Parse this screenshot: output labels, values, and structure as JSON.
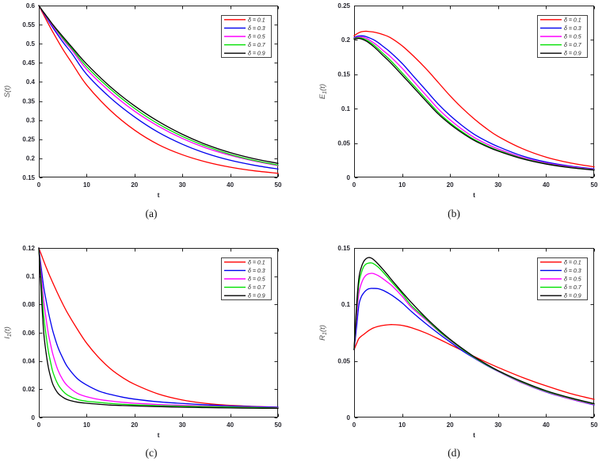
{
  "figure": {
    "background": "#ffffff",
    "axis_color": "#222222",
    "tick_label_color": "#26262e",
    "ylabel_color": "#555555",
    "legend_text_color": "#222222"
  },
  "chart_data": [
    {
      "type": "line",
      "caption": "(a)",
      "xlabel": "t",
      "ylabel_base": "S",
      "ylabel_sub": "",
      "ylabel_rest": "(t)",
      "xlim": [
        0,
        50
      ],
      "ylim": [
        0.15,
        0.6
      ],
      "xticks": [
        0,
        10,
        20,
        30,
        40,
        50
      ],
      "xtick_labels": [
        "0",
        "10",
        "20",
        "30",
        "40",
        "50"
      ],
      "yticks": [
        0.15,
        0.2,
        0.25,
        0.3,
        0.35,
        0.4,
        0.45,
        0.5,
        0.55,
        0.6
      ],
      "ytick_labels": [
        "0.15",
        "0.2",
        "0.25",
        "0.3",
        "0.35",
        "0.4",
        "0.45",
        "0.5",
        "0.55",
        "0.6"
      ],
      "legend_position": "northeast",
      "grid": false,
      "x": [
        0,
        1,
        2,
        3,
        5,
        7,
        10,
        15,
        20,
        25,
        30,
        35,
        40,
        45,
        50
      ],
      "series": [
        {
          "name": "δ = 0.1",
          "color": "#ff0000",
          "values": [
            0.6,
            0.576,
            0.552,
            0.529,
            0.486,
            0.448,
            0.392,
            0.325,
            0.274,
            0.236,
            0.2095,
            0.1905,
            0.177,
            0.1675,
            0.161
          ]
        },
        {
          "name": "δ = 0.3",
          "color": "#0000ee",
          "values": [
            0.6,
            0.58,
            0.56,
            0.541,
            0.505,
            0.473,
            0.42,
            0.358,
            0.3085,
            0.268,
            0.237,
            0.213,
            0.195,
            0.182,
            0.172
          ]
        },
        {
          "name": "δ = 0.5",
          "color": "#ff00ff",
          "values": [
            0.6,
            0.581,
            0.563,
            0.545,
            0.512,
            0.482,
            0.433,
            0.373,
            0.3235,
            0.284,
            0.252,
            0.227,
            0.208,
            0.193,
            0.181
          ]
        },
        {
          "name": "δ = 0.7",
          "color": "#00e000",
          "values": [
            0.6,
            0.582,
            0.565,
            0.548,
            0.515,
            0.486,
            0.44,
            0.381,
            0.331,
            0.29,
            0.2575,
            0.2315,
            0.2105,
            0.1945,
            0.1825
          ]
        },
        {
          "name": "δ = 0.9",
          "color": "#000000",
          "values": [
            0.6,
            0.5825,
            0.566,
            0.549,
            0.519,
            0.49,
            0.447,
            0.387,
            0.3375,
            0.2965,
            0.263,
            0.236,
            0.215,
            0.199,
            0.187
          ]
        }
      ]
    },
    {
      "type": "line",
      "caption": "(b)",
      "xlabel": "t",
      "ylabel_base": "E",
      "ylabel_sub": "1",
      "ylabel_rest": "(t)",
      "xlim": [
        0,
        50
      ],
      "ylim": [
        0,
        0.25
      ],
      "xticks": [
        0,
        10,
        20,
        30,
        40,
        50
      ],
      "xtick_labels": [
        "0",
        "10",
        "20",
        "30",
        "40",
        "50"
      ],
      "yticks": [
        0,
        0.05,
        0.1,
        0.15,
        0.2,
        0.25
      ],
      "ytick_labels": [
        "0",
        "0.05",
        "0.1",
        "0.15",
        "0.2",
        "0.25"
      ],
      "legend_position": "northeast",
      "grid": false,
      "x": [
        0,
        0.5,
        1,
        1.5,
        2,
        2.5,
        3,
        4,
        5,
        6,
        7.5,
        10,
        12.5,
        15,
        17.5,
        20,
        22.5,
        25,
        27.5,
        30,
        35,
        40,
        45,
        50
      ],
      "series": [
        {
          "name": "δ = 0.1",
          "color": "#ff0000",
          "values": [
            0.206,
            0.2085,
            0.2105,
            0.2118,
            0.2124,
            0.2126,
            0.2123,
            0.2115,
            0.21,
            0.2078,
            0.2036,
            0.1915,
            0.1757,
            0.158,
            0.1384,
            0.1187,
            0.101,
            0.0853,
            0.0715,
            0.0597,
            0.0421,
            0.0295,
            0.0212,
            0.0155
          ]
        },
        {
          "name": "δ = 0.3",
          "color": "#0000ee",
          "values": [
            0.2033,
            0.205,
            0.2058,
            0.206,
            0.2057,
            0.2048,
            0.2035,
            0.2005,
            0.1962,
            0.1908,
            0.1825,
            0.1659,
            0.1462,
            0.1266,
            0.1069,
            0.09,
            0.0755,
            0.0629,
            0.0531,
            0.0448,
            0.0314,
            0.0224,
            0.0165,
            0.0125
          ]
        },
        {
          "name": "δ = 0.5",
          "color": "#ff00ff",
          "values": [
            0.2025,
            0.2038,
            0.2044,
            0.2043,
            0.2036,
            0.2024,
            0.2007,
            0.1962,
            0.191,
            0.1848,
            0.1762,
            0.1589,
            0.139,
            0.1195,
            0.1,
            0.0838,
            0.07,
            0.0583,
            0.0492,
            0.0415,
            0.0293,
            0.021,
            0.0155,
            0.0118
          ]
        },
        {
          "name": "δ = 0.7",
          "color": "#00e000",
          "values": [
            0.2018,
            0.2029,
            0.2032,
            0.2028,
            0.2018,
            0.2002,
            0.1982,
            0.1932,
            0.1872,
            0.1805,
            0.1708,
            0.1522,
            0.1331,
            0.1139,
            0.095,
            0.0795,
            0.0665,
            0.0553,
            0.0467,
            0.0394,
            0.0279,
            0.02,
            0.0147,
            0.0112
          ]
        },
        {
          "name": "δ = 0.9",
          "color": "#000000",
          "values": [
            0.2012,
            0.2021,
            0.2022,
            0.2015,
            0.2002,
            0.1984,
            0.1962,
            0.1908,
            0.1844,
            0.1775,
            0.1676,
            0.149,
            0.13,
            0.111,
            0.0925,
            0.0775,
            0.0648,
            0.0539,
            0.0455,
            0.0384,
            0.0272,
            0.0195,
            0.0143,
            0.0108
          ]
        }
      ]
    },
    {
      "type": "line",
      "caption": "(c)",
      "xlabel": "t",
      "ylabel_base": "I",
      "ylabel_sub": "1",
      "ylabel_rest": "(t)",
      "xlim": [
        0,
        50
      ],
      "ylim": [
        0,
        0.12
      ],
      "xticks": [
        0,
        10,
        20,
        30,
        40,
        50
      ],
      "xtick_labels": [
        "0",
        "10",
        "20",
        "30",
        "40",
        "50"
      ],
      "yticks": [
        0,
        0.02,
        0.04,
        0.06,
        0.08,
        0.1,
        0.12
      ],
      "ytick_labels": [
        "0",
        "0.02",
        "0.04",
        "0.06",
        "0.08",
        "0.1",
        "0.12"
      ],
      "legend_position": "northeast",
      "grid": false,
      "x": [
        0,
        0.5,
        1,
        1.5,
        2,
        2.5,
        3,
        4,
        5,
        6,
        8,
        10,
        12.5,
        15,
        17.5,
        20,
        25,
        30,
        35,
        40,
        45,
        50
      ],
      "series": [
        {
          "name": "δ = 0.1",
          "color": "#ff0000",
          "values": [
            0.12,
            0.1155,
            0.111,
            0.1066,
            0.1025,
            0.0986,
            0.0948,
            0.0874,
            0.0804,
            0.074,
            0.0628,
            0.0526,
            0.0425,
            0.0344,
            0.0283,
            0.0235,
            0.0166,
            0.0124,
            0.00995,
            0.0086,
            0.00785,
            0.0073
          ]
        },
        {
          "name": "δ = 0.3",
          "color": "#0000ee",
          "values": [
            0.12,
            0.1062,
            0.0928,
            0.0833,
            0.0746,
            0.0671,
            0.0603,
            0.0497,
            0.0421,
            0.0358,
            0.0277,
            0.023,
            0.0188,
            0.0163,
            0.0144,
            0.013,
            0.0111,
            0.00995,
            0.009,
            0.0082,
            0.0077,
            0.0073
          ]
        },
        {
          "name": "δ = 0.5",
          "color": "#ff00ff",
          "values": [
            0.12,
            0.1012,
            0.0832,
            0.0705,
            0.0593,
            0.0511,
            0.044,
            0.0335,
            0.0268,
            0.0224,
            0.0172,
            0.0147,
            0.0128,
            0.0117,
            0.0108,
            0.0101,
            0.0092,
            0.0086,
            0.0081,
            0.00765,
            0.0073,
            0.0069
          ]
        },
        {
          "name": "δ = 0.7",
          "color": "#00e000",
          "values": [
            0.12,
            0.0955,
            0.0727,
            0.0585,
            0.0469,
            0.0385,
            0.0316,
            0.0235,
            0.0188,
            0.0159,
            0.0128,
            0.0115,
            0.0107,
            0.00995,
            0.0094,
            0.009,
            0.0084,
            0.008,
            0.0077,
            0.0074,
            0.00705,
            0.0067
          ]
        },
        {
          "name": "δ = 0.9",
          "color": "#000000",
          "values": [
            0.12,
            0.089,
            0.0612,
            0.0462,
            0.0354,
            0.0283,
            0.023,
            0.0172,
            0.0144,
            0.0126,
            0.0109,
            0.0101,
            0.0094,
            0.0088,
            0.0085,
            0.0082,
            0.0077,
            0.0073,
            0.007,
            0.0068,
            0.0066,
            0.0065
          ]
        }
      ]
    },
    {
      "type": "line",
      "caption": "(d)",
      "xlabel": "t",
      "ylabel_base": "R",
      "ylabel_sub": "1",
      "ylabel_rest": "(t)",
      "xlim": [
        0,
        50
      ],
      "ylim": [
        0,
        0.15
      ],
      "xticks": [
        0,
        10,
        20,
        30,
        40,
        50
      ],
      "xtick_labels": [
        "0",
        "10",
        "20",
        "30",
        "40",
        "50"
      ],
      "yticks": [
        0,
        0.05,
        0.1,
        0.15
      ],
      "ytick_labels": [
        "0",
        "0.05",
        "0.1",
        "0.15"
      ],
      "legend_position": "northeast",
      "grid": false,
      "x": [
        0,
        0.5,
        1,
        1.5,
        2,
        2.5,
        3,
        3.5,
        4,
        5,
        6,
        7,
        8,
        10,
        12,
        15,
        18,
        20,
        22.5,
        25,
        27.5,
        30,
        35,
        40,
        45,
        50
      ],
      "series": [
        {
          "name": "δ = 0.1",
          "color": "#ff0000",
          "values": [
            0.06,
            0.0652,
            0.0699,
            0.0719,
            0.0735,
            0.0752,
            0.0768,
            0.0781,
            0.0792,
            0.0806,
            0.0815,
            0.082,
            0.0822,
            0.0815,
            0.0794,
            0.0747,
            0.0687,
            0.0645,
            0.0593,
            0.054,
            0.049,
            0.0443,
            0.0356,
            0.028,
            0.0213,
            0.0161
          ]
        },
        {
          "name": "δ = 0.3",
          "color": "#0000ee",
          "values": [
            0.06,
            0.0795,
            0.0995,
            0.1068,
            0.1102,
            0.1125,
            0.1138,
            0.1142,
            0.1142,
            0.114,
            0.1126,
            0.1104,
            0.1078,
            0.1014,
            0.0936,
            0.0829,
            0.073,
            0.0668,
            0.0592,
            0.0526,
            0.0464,
            0.0408,
            0.0306,
            0.0225,
            0.0164,
            0.0111
          ]
        },
        {
          "name": "δ = 0.5",
          "color": "#ff00ff",
          "values": [
            0.06,
            0.0885,
            0.1102,
            0.1183,
            0.1233,
            0.1259,
            0.1271,
            0.1275,
            0.1274,
            0.1256,
            0.1228,
            0.1196,
            0.1161,
            0.1073,
            0.0972,
            0.0863,
            0.0748,
            0.0683,
            0.0603,
            0.0531,
            0.0468,
            0.041,
            0.0308,
            0.0228,
            0.0166,
            0.0114
          ]
        },
        {
          "name": "δ = 0.7",
          "color": "#00e000",
          "values": [
            0.06,
            0.094,
            0.1185,
            0.1278,
            0.1334,
            0.1358,
            0.1366,
            0.1368,
            0.1362,
            0.1332,
            0.1288,
            0.124,
            0.119,
            0.1095,
            0.0988,
            0.0872,
            0.0752,
            0.0687,
            0.0605,
            0.0533,
            0.0469,
            0.0412,
            0.0313,
            0.0232,
            0.0171,
            0.0119
          ]
        },
        {
          "name": "δ = 0.9",
          "color": "#000000",
          "values": [
            0.06,
            0.098,
            0.1233,
            0.1328,
            0.138,
            0.1405,
            0.1415,
            0.1412,
            0.1399,
            0.1358,
            0.1311,
            0.1261,
            0.1209,
            0.111,
            0.1014,
            0.0882,
            0.0763,
            0.0692,
            0.0612,
            0.0538,
            0.0474,
            0.0415,
            0.0318,
            0.0237,
            0.0175,
            0.0123
          ]
        }
      ]
    }
  ]
}
